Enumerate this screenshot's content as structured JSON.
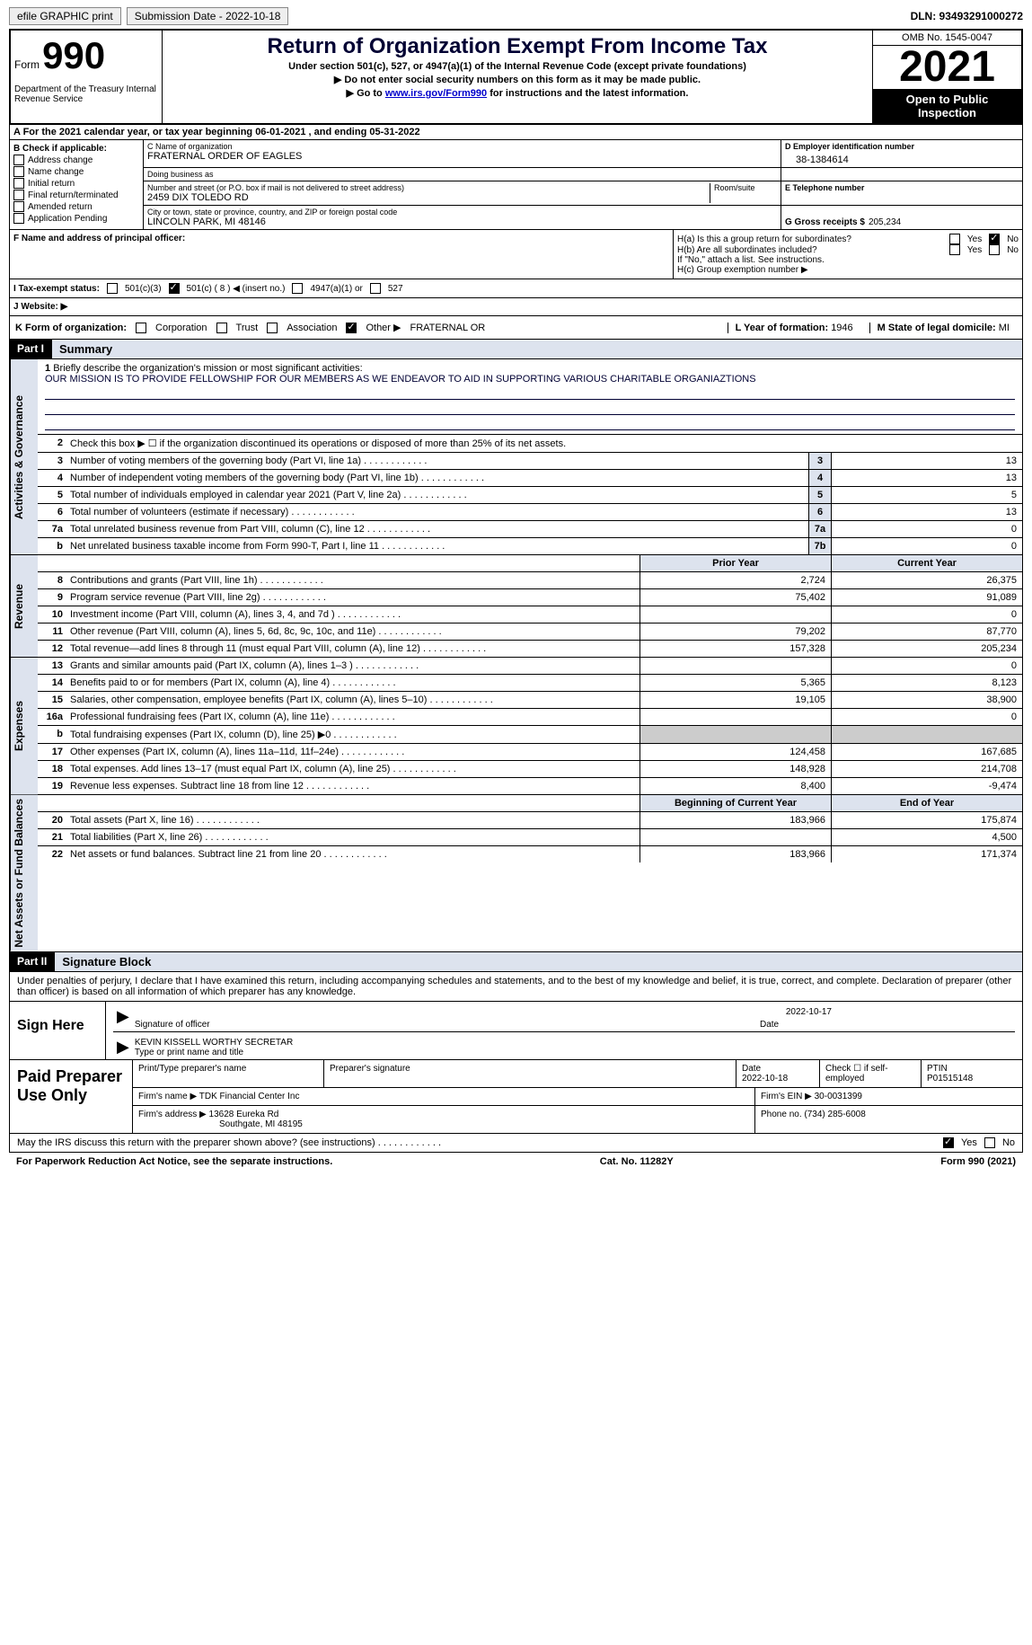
{
  "topbar": {
    "efile": "efile GRAPHIC print",
    "submission_label": "Submission Date - 2022-10-18",
    "dln_label": "DLN: 93493291000272"
  },
  "header": {
    "form_word": "Form",
    "form_number": "990",
    "title": "Return of Organization Exempt From Income Tax",
    "sub1": "Under section 501(c), 527, or 4947(a)(1) of the Internal Revenue Code (except private foundations)",
    "sub2": "▶ Do not enter social security numbers on this form as it may be made public.",
    "sub3_pre": "▶ Go to ",
    "sub3_link": "www.irs.gov/Form990",
    "sub3_post": " for instructions and the latest information.",
    "dept": "Department of the Treasury Internal Revenue Service",
    "omb": "OMB No. 1545-0047",
    "year": "2021",
    "open": "Open to Public Inspection"
  },
  "row_a": "A For the 2021 calendar year, or tax year beginning 06-01-2021    , and ending 05-31-2022",
  "section_b": {
    "label": "B Check if applicable:",
    "items": [
      "Address change",
      "Name change",
      "Initial return",
      "Final return/terminated",
      "Amended return",
      "Application Pending"
    ]
  },
  "section_c": {
    "name_label": "C Name of organization",
    "name": "FRATERNAL ORDER OF EAGLES",
    "dba_label": "Doing business as",
    "dba": "",
    "street_label": "Number and street (or P.O. box if mail is not delivered to street address)",
    "room_label": "Room/suite",
    "street": "2459 DIX TOLEDO RD",
    "city_label": "City or town, state or province, country, and ZIP or foreign postal code",
    "city": "LINCOLN PARK, MI  48146"
  },
  "section_d": {
    "label": "D Employer identification number",
    "val": "38-1384614"
  },
  "section_e": {
    "label": "E Telephone number",
    "val": ""
  },
  "section_g": {
    "label": "G Gross receipts $",
    "val": "205,234"
  },
  "section_f": {
    "label": "F Name and address of principal officer:",
    "val": ""
  },
  "section_h": {
    "ha": "H(a)  Is this a group return for subordinates?",
    "hb": "H(b)  Are all subordinates included?",
    "hb_note": "If \"No,\" attach a list. See instructions.",
    "hc": "H(c)  Group exemption number ▶",
    "yes": "Yes",
    "no": "No"
  },
  "section_i": {
    "label": "I  Tax-exempt status:",
    "opts": [
      "501(c)(3)",
      "501(c) ( 8 ) ◀ (insert no.)",
      "4947(a)(1) or",
      "527"
    ]
  },
  "section_j": {
    "label": "J  Website: ▶",
    "val": ""
  },
  "section_k": {
    "label": "K Form of organization:",
    "opts": [
      "Corporation",
      "Trust",
      "Association",
      "Other ▶"
    ],
    "other_val": "FRATERNAL OR"
  },
  "section_l": {
    "label": "L Year of formation:",
    "val": "1946"
  },
  "section_m": {
    "label": "M State of legal domicile:",
    "val": "MI"
  },
  "part1": {
    "num": "Part I",
    "title": "Summary"
  },
  "summary": {
    "q1_label": "Briefly describe the organization's mission or most significant activities:",
    "q1_val": "OUR MISSION IS TO PROVIDE FELLOWSHIP FOR OUR MEMBERS AS WE ENDEAVOR TO AID IN SUPPORTING VARIOUS CHARITABLE ORGANIAZTIONS",
    "q2": "Check this box ▶ ☐ if the organization discontinued its operations or disposed of more than 25% of its net assets.",
    "tabs": {
      "governance": "Activities & Governance",
      "revenue": "Revenue",
      "expenses": "Expenses",
      "netassets": "Net Assets or Fund Balances"
    },
    "rows_gov": [
      {
        "n": "3",
        "label": "Number of voting members of the governing body (Part VI, line 1a)",
        "box": "3",
        "val": "13"
      },
      {
        "n": "4",
        "label": "Number of independent voting members of the governing body (Part VI, line 1b)",
        "box": "4",
        "val": "13"
      },
      {
        "n": "5",
        "label": "Total number of individuals employed in calendar year 2021 (Part V, line 2a)",
        "box": "5",
        "val": "5"
      },
      {
        "n": "6",
        "label": "Total number of volunteers (estimate if necessary)",
        "box": "6",
        "val": "13"
      },
      {
        "n": "7a",
        "label": "Total unrelated business revenue from Part VIII, column (C), line 12",
        "box": "7a",
        "val": "0"
      },
      {
        "n": "b",
        "label": "Net unrelated business taxable income from Form 990-T, Part I, line 11",
        "box": "7b",
        "val": "0"
      }
    ],
    "col_headers": {
      "prior": "Prior Year",
      "current": "Current Year"
    },
    "rows_rev": [
      {
        "n": "8",
        "label": "Contributions and grants (Part VIII, line 1h)",
        "prior": "2,724",
        "cur": "26,375"
      },
      {
        "n": "9",
        "label": "Program service revenue (Part VIII, line 2g)",
        "prior": "75,402",
        "cur": "91,089"
      },
      {
        "n": "10",
        "label": "Investment income (Part VIII, column (A), lines 3, 4, and 7d )",
        "prior": "",
        "cur": "0"
      },
      {
        "n": "11",
        "label": "Other revenue (Part VIII, column (A), lines 5, 6d, 8c, 9c, 10c, and 11e)",
        "prior": "79,202",
        "cur": "87,770"
      },
      {
        "n": "12",
        "label": "Total revenue—add lines 8 through 11 (must equal Part VIII, column (A), line 12)",
        "prior": "157,328",
        "cur": "205,234"
      }
    ],
    "rows_exp": [
      {
        "n": "13",
        "label": "Grants and similar amounts paid (Part IX, column (A), lines 1–3 )",
        "prior": "",
        "cur": "0"
      },
      {
        "n": "14",
        "label": "Benefits paid to or for members (Part IX, column (A), line 4)",
        "prior": "5,365",
        "cur": "8,123"
      },
      {
        "n": "15",
        "label": "Salaries, other compensation, employee benefits (Part IX, column (A), lines 5–10)",
        "prior": "19,105",
        "cur": "38,900"
      },
      {
        "n": "16a",
        "label": "Professional fundraising fees (Part IX, column (A), line 11e)",
        "prior": "",
        "cur": "0"
      },
      {
        "n": "b",
        "label": "Total fundraising expenses (Part IX, column (D), line 25) ▶0",
        "prior": "SHADE",
        "cur": "SHADE"
      },
      {
        "n": "17",
        "label": "Other expenses (Part IX, column (A), lines 11a–11d, 11f–24e)",
        "prior": "124,458",
        "cur": "167,685"
      },
      {
        "n": "18",
        "label": "Total expenses. Add lines 13–17 (must equal Part IX, column (A), line 25)",
        "prior": "148,928",
        "cur": "214,708"
      },
      {
        "n": "19",
        "label": "Revenue less expenses. Subtract line 18 from line 12",
        "prior": "8,400",
        "cur": "-9,474"
      }
    ],
    "col_headers2": {
      "begin": "Beginning of Current Year",
      "end": "End of Year"
    },
    "rows_net": [
      {
        "n": "20",
        "label": "Total assets (Part X, line 16)",
        "prior": "183,966",
        "cur": "175,874"
      },
      {
        "n": "21",
        "label": "Total liabilities (Part X, line 26)",
        "prior": "",
        "cur": "4,500"
      },
      {
        "n": "22",
        "label": "Net assets or fund balances. Subtract line 21 from line 20",
        "prior": "183,966",
        "cur": "171,374"
      }
    ]
  },
  "part2": {
    "num": "Part II",
    "title": "Signature Block"
  },
  "sig": {
    "declaration": "Under penalties of perjury, I declare that I have examined this return, including accompanying schedules and statements, and to the best of my knowledge and belief, it is true, correct, and complete. Declaration of preparer (other than officer) is based on all information of which preparer has any knowledge.",
    "sign_here": "Sign Here",
    "sig_officer": "Signature of officer",
    "date_label": "Date",
    "date_val": "2022-10-17",
    "name_line": "KEVIN KISSELL WORTHY SECRETAR",
    "name_sub": "Type or print name and title"
  },
  "paid": {
    "title": "Paid Preparer Use Only",
    "h1": "Print/Type preparer's name",
    "h2": "Preparer's signature",
    "h3": "Date",
    "h3v": "2022-10-18",
    "h4": "Check ☐ if self-employed",
    "h5": "PTIN",
    "h5v": "P01515148",
    "firm_label": "Firm's name    ▶",
    "firm": "TDK Financial Center Inc",
    "ein_label": "Firm's EIN ▶",
    "ein": "30-0031399",
    "addr_label": "Firm's address ▶",
    "addr1": "13628 Eureka Rd",
    "addr2": "Southgate, MI  48195",
    "phone_label": "Phone no.",
    "phone": "(734) 285-6008"
  },
  "footer": {
    "discuss": "May the IRS discuss this return with the preparer shown above? (see instructions)",
    "yes": "Yes",
    "no": "No",
    "paperwork": "For Paperwork Reduction Act Notice, see the separate instructions.",
    "cat": "Cat. No. 11282Y",
    "form": "Form 990 (2021)"
  }
}
